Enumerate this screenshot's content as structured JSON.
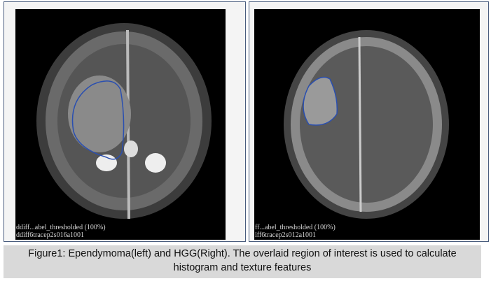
{
  "left_image": {
    "overlay_line1": "ddiff...abel_thresholded (100%)",
    "overlay_line2": "ddiff6tracep2s016a1001",
    "roi_color": "#2a4fb0"
  },
  "right_image": {
    "overlay_line1": "ff...abel_thresholded (100%)",
    "overlay_line2": "iff6tracep2s012a1001",
    "roi_color": "#2a4fb0"
  },
  "caption": {
    "line1": "Figure1: Ependymoma(left) and HGG(Right). The overlaid region of interest is used to  calculate",
    "line2": "histogram and texture features"
  }
}
